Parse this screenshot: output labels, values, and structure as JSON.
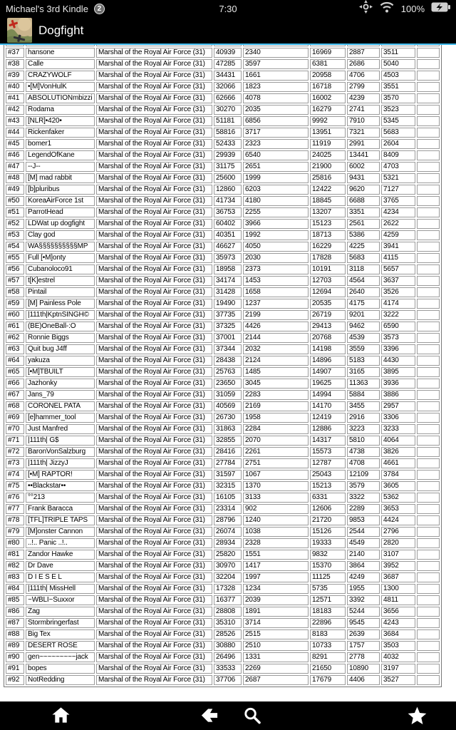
{
  "status_bar": {
    "device_name": "Michael's 3rd Kindle",
    "notification_count": "2",
    "time": "7:30",
    "battery_percent": "100%",
    "icons": [
      "notification-badge",
      "location-icon",
      "wifi-icon",
      "battery-icon"
    ]
  },
  "header": {
    "app_title": "Dogfight",
    "icons": [
      "dogfight-app-icon"
    ]
  },
  "table": {
    "player_title": "Marshal of the Royal Air Force (31)",
    "rows": [
      {
        "rank": "#37",
        "player": "hansone",
        "values": [
          "40939",
          "2340",
          "16969",
          "2887",
          "3511"
        ]
      },
      {
        "rank": "#38",
        "player": "Calle",
        "values": [
          "47285",
          "3597",
          "6381",
          "2686",
          "5040"
        ]
      },
      {
        "rank": "#39",
        "player": "CRAZYWOLF",
        "values": [
          "34431",
          "1661",
          "20958",
          "4706",
          "4503"
        ]
      },
      {
        "rank": "#40",
        "player": "•[M]VonHulK",
        "values": [
          "32066",
          "1823",
          "16718",
          "2799",
          "3551"
        ]
      },
      {
        "rank": "#41",
        "player": "ABSOLUTIONmbizzi",
        "values": [
          "62666",
          "4078",
          "16002",
          "4239",
          "3570"
        ]
      },
      {
        "rank": "#42",
        "player": "Rodama",
        "values": [
          "30270",
          "2035",
          "16279",
          "2741",
          "3523"
        ]
      },
      {
        "rank": "#43",
        "player": "[NLR]•420•",
        "values": [
          "51181",
          "6856",
          "9992",
          "7910",
          "5345"
        ]
      },
      {
        "rank": "#44",
        "player": "Rickenfaker",
        "values": [
          "58816",
          "3717",
          "13951",
          "7321",
          "5683"
        ]
      },
      {
        "rank": "#45",
        "player": "bomer1",
        "values": [
          "52433",
          "2323",
          "11919",
          "2991",
          "2604"
        ]
      },
      {
        "rank": "#46",
        "player": "LegendOfKane",
        "values": [
          "29939",
          "6540",
          "24025",
          "13441",
          "8409"
        ]
      },
      {
        "rank": "#47",
        "player": "--J--",
        "values": [
          "31175",
          "2651",
          "21900",
          "6002",
          "4703"
        ]
      },
      {
        "rank": "#48",
        "player": "[M] mad rabbit",
        "values": [
          "25600",
          "1999",
          "25816",
          "9431",
          "5321"
        ]
      },
      {
        "rank": "#49",
        "player": "[b]pluribus",
        "values": [
          "12860",
          "6203",
          "12422",
          "9620",
          "7127"
        ]
      },
      {
        "rank": "#50",
        "player": "KoreaAirForce 1st",
        "values": [
          "41734",
          "4180",
          "18845",
          "6688",
          "3765"
        ]
      },
      {
        "rank": "#51",
        "player": "ParrotHead",
        "values": [
          "36753",
          "2255",
          "13207",
          "3351",
          "4234"
        ]
      },
      {
        "rank": "#52",
        "player": "LDWat up dogfight",
        "values": [
          "60402",
          "3966",
          "15123",
          "2561",
          "2622"
        ]
      },
      {
        "rank": "#53",
        "player": "Clay god",
        "values": [
          "40351",
          "1992",
          "18713",
          "5386",
          "4259"
        ]
      },
      {
        "rank": "#54",
        "player": "WA§§§§§§§§§§MP",
        "values": [
          "46627",
          "4050",
          "16229",
          "4225",
          "3941"
        ]
      },
      {
        "rank": "#55",
        "player": "Full [•M]onty",
        "values": [
          "35973",
          "2030",
          "17828",
          "5683",
          "4115"
        ]
      },
      {
        "rank": "#56",
        "player": "Cubanoloco91",
        "values": [
          "18958",
          "2373",
          "10191",
          "3118",
          "5657"
        ]
      },
      {
        "rank": "#57",
        "player": "t[K]estrel",
        "values": [
          "34174",
          "1453",
          "12703",
          "4564",
          "3637"
        ]
      },
      {
        "rank": "#58",
        "player": "Pintail",
        "values": [
          "31428",
          "1658",
          "12694",
          "2640",
          "3526"
        ]
      },
      {
        "rank": "#59",
        "player": "[M] Painless Pole",
        "values": [
          "19490",
          "1237",
          "20535",
          "4175",
          "4174"
        ]
      },
      {
        "rank": "#60",
        "player": "|111th|KptnSINGH©",
        "values": [
          "37735",
          "2199",
          "26719",
          "9201",
          "3222"
        ]
      },
      {
        "rank": "#61",
        "player": "(BE)OneBall-:O",
        "values": [
          "37325",
          "4426",
          "29413",
          "9462",
          "6590"
        ]
      },
      {
        "rank": "#62",
        "player": "Ronnie Biggs",
        "values": [
          "37001",
          "2144",
          "20768",
          "4539",
          "3573"
        ]
      },
      {
        "rank": "#63",
        "player": "Quit bug J4ff",
        "values": [
          "37344",
          "2032",
          "14198",
          "3559",
          "3396"
        ]
      },
      {
        "rank": "#64",
        "player": "yakuza",
        "values": [
          "28438",
          "2124",
          "14896",
          "5183",
          "4430"
        ]
      },
      {
        "rank": "#65",
        "player": "[•M]TBUILT",
        "values": [
          "25763",
          "1485",
          "14907",
          "3165",
          "3895"
        ]
      },
      {
        "rank": "#66",
        "player": "Jazhonky",
        "values": [
          "23650",
          "3045",
          "19625",
          "11363",
          "3936"
        ]
      },
      {
        "rank": "#67",
        "player": "Jans_79",
        "values": [
          "31059",
          "2283",
          "14994",
          "5884",
          "3886"
        ]
      },
      {
        "rank": "#68",
        "player": "CORONEL PATA",
        "values": [
          "40569",
          "2169",
          "14170",
          "3455",
          "2957"
        ]
      },
      {
        "rank": "#69",
        "player": "[e]hammer_tool",
        "values": [
          "26730",
          "1958",
          "12419",
          "2916",
          "3306"
        ]
      },
      {
        "rank": "#70",
        "player": "Just Manfred",
        "values": [
          "31863",
          "2284",
          "12886",
          "3223",
          "3233"
        ]
      },
      {
        "rank": "#71",
        "player": "|111th| G$",
        "values": [
          "32855",
          "2070",
          "14317",
          "5810",
          "4064"
        ]
      },
      {
        "rank": "#72",
        "player": "BaronVonSalzburg",
        "values": [
          "28416",
          "2261",
          "15573",
          "4738",
          "3826"
        ]
      },
      {
        "rank": "#73",
        "player": "|111th| JizzyJ",
        "values": [
          "27784",
          "2751",
          "12787",
          "4708",
          "4661"
        ]
      },
      {
        "rank": "#74",
        "player": "[•M] RAPTOR!",
        "values": [
          "31597",
          "1067",
          "25043",
          "12109",
          "3784"
        ]
      },
      {
        "rank": "#75",
        "player": "••Blackstar••",
        "values": [
          "32315",
          "1370",
          "15213",
          "3579",
          "3605"
        ]
      },
      {
        "rank": "#76",
        "player": "°°213",
        "values": [
          "16105",
          "3133",
          "6331",
          "3322",
          "5362"
        ]
      },
      {
        "rank": "#77",
        "player": "Frank Baracca",
        "values": [
          "23314",
          "902",
          "12606",
          "2289",
          "3653"
        ]
      },
      {
        "rank": "#78",
        "player": "[TFL]TRIPLE TAPS",
        "values": [
          "28796",
          "1240",
          "21720",
          "9853",
          "4424"
        ]
      },
      {
        "rank": "#79",
        "player": "[M]onster Cannon",
        "values": [
          "26074",
          "1038",
          "15126",
          "2544",
          "2796"
        ]
      },
      {
        "rank": "#80",
        "player": "..!.. Panic ..!..",
        "values": [
          "28934",
          "2328",
          "19333",
          "4549",
          "2820"
        ]
      },
      {
        "rank": "#81",
        "player": "Zandor Hawke",
        "values": [
          "25820",
          "1551",
          "9832",
          "2140",
          "3107"
        ]
      },
      {
        "rank": "#82",
        "player": "Dr Dave",
        "values": [
          "30970",
          "1417",
          "15370",
          "3864",
          "3952"
        ]
      },
      {
        "rank": "#83",
        "player": "D I E S E L",
        "values": [
          "32204",
          "1997",
          "11125",
          "4249",
          "3687"
        ]
      },
      {
        "rank": "#84",
        "player": "|111th| MissHell",
        "values": [
          "17328",
          "1234",
          "5735",
          "1955",
          "1300"
        ]
      },
      {
        "rank": "#85",
        "player": "~WBLI~Suxxor",
        "values": [
          "16377",
          "2039",
          "12571",
          "3392",
          "4811"
        ]
      },
      {
        "rank": "#86",
        "player": "Zag",
        "values": [
          "28808",
          "1891",
          "18183",
          "5244",
          "3656"
        ]
      },
      {
        "rank": "#87",
        "player": "Stormbringerfast",
        "values": [
          "35310",
          "3714",
          "22896",
          "9545",
          "4243"
        ]
      },
      {
        "rank": "#88",
        "player": "Big Tex",
        "values": [
          "28526",
          "2515",
          "8183",
          "2639",
          "3684"
        ]
      },
      {
        "rank": "#89",
        "player": "DESERT ROSE",
        "values": [
          "30880",
          "2510",
          "10733",
          "1757",
          "3503"
        ]
      },
      {
        "rank": "#90",
        "player": "gen~~~~~~~~~jack",
        "values": [
          "26496",
          "1331",
          "8291",
          "2778",
          "4032"
        ]
      },
      {
        "rank": "#91",
        "player": "bopes",
        "values": [
          "33533",
          "2269",
          "21650",
          "10890",
          "3197"
        ]
      },
      {
        "rank": "#92",
        "player": "NotRedding",
        "values": [
          "37706",
          "2687",
          "17679",
          "4406",
          "3527"
        ]
      }
    ]
  },
  "nav_bar": {
    "icons": [
      "home-icon",
      "back-icon",
      "search-icon",
      "favorites-star-icon"
    ]
  }
}
